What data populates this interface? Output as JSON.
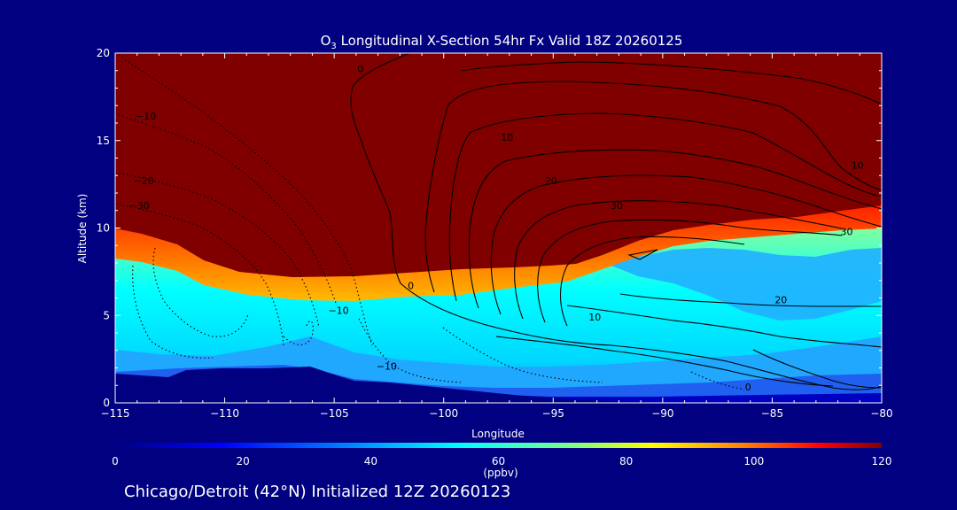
{
  "chart_data": {
    "type": "heatmap",
    "title": "O3 Longitudinal X-Section 54hr  Fx Valid 18Z 20260125",
    "title_prefix": "O",
    "title_sub": "3",
    "title_rest": " Longitudinal X-Section 54hr  Fx Valid 18Z 20260125",
    "xlabel": "Longitude",
    "ylabel": "Altitude (km)",
    "xlim": [
      -115,
      -80
    ],
    "ylim": [
      0,
      20
    ],
    "x_ticks": [
      -115,
      -110,
      -105,
      -100,
      -95,
      -90,
      -85,
      -80
    ],
    "x_tick_labels": [
      "−115",
      "−110",
      "−105",
      "−100",
      "−95",
      "−90",
      "−85",
      "−80"
    ],
    "y_ticks": [
      0,
      5,
      10,
      15,
      20
    ],
    "y_tick_labels": [
      "0",
      "5",
      "10",
      "15",
      "20"
    ],
    "colorbar": {
      "min": 0,
      "max": 120,
      "ticks": [
        0,
        20,
        40,
        60,
        80,
        100,
        120
      ],
      "tick_labels": [
        "0",
        "20",
        "40",
        "60",
        "80",
        "100",
        "120"
      ],
      "unit": "(ppbv)",
      "colors": [
        "#000080",
        "#0000ff",
        "#0080ff",
        "#00ffff",
        "#ffff00",
        "#ff8000",
        "#ff0000",
        "#800000"
      ]
    },
    "contour_labels": [
      {
        "text": "0",
        "x": -103.8,
        "y": 18.9,
        "dashed": false
      },
      {
        "text": "10",
        "x": -97.1,
        "y": 15
      },
      {
        "text": "20",
        "x": -95.1,
        "y": 12.5
      },
      {
        "text": "30",
        "x": -92.1,
        "y": 11.1
      },
      {
        "text": "10",
        "x": -81.1,
        "y": 13.4
      },
      {
        "text": "30",
        "x": -81.6,
        "y": 9.6
      },
      {
        "text": "20",
        "x": -84.6,
        "y": 5.7
      },
      {
        "text": "10",
        "x": -93.1,
        "y": 4.7
      },
      {
        "text": "0",
        "x": -86.1,
        "y": 0.7
      },
      {
        "text": "0",
        "x": -101.5,
        "y": 6.5
      },
      {
        "text": "−10",
        "x": -104.8,
        "y": 5.1
      },
      {
        "text": "−10",
        "x": -113.6,
        "y": 16.2
      },
      {
        "text": "−20",
        "x": -113.7,
        "y": 12.5
      },
      {
        "text": "−30",
        "x": -113.9,
        "y": 11.1
      },
      {
        "text": "−10",
        "x": -102.6,
        "y": 1.9
      }
    ]
  },
  "footer": {
    "text": "Chicago/Detroit (42°N) Initialized 12Z 20260123"
  }
}
